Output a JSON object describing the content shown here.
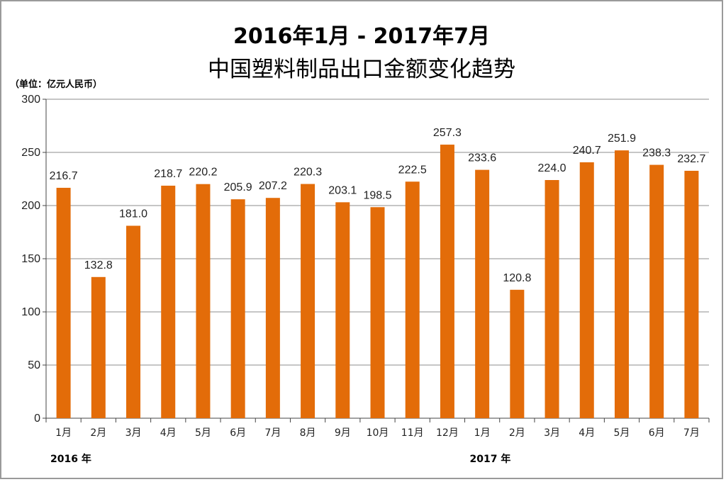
{
  "chart_data": {
    "type": "bar",
    "title": "2016年1月 - 2017年7月",
    "subtitle": "中国塑料制品出口金额变化趋势",
    "unit_label": "（单位：亿元人民币）",
    "categories": [
      "1月",
      "2月",
      "3月",
      "4月",
      "5月",
      "6月",
      "7月",
      "8月",
      "9月",
      "10月",
      "11月",
      "12月",
      "1月",
      "2月",
      "3月",
      "4月",
      "5月",
      "6月",
      "7月"
    ],
    "values": [
      216.7,
      132.8,
      181.0,
      218.7,
      220.2,
      205.9,
      207.2,
      220.3,
      203.1,
      198.5,
      222.5,
      257.3,
      233.6,
      120.8,
      224.0,
      240.7,
      251.9,
      238.3,
      232.7
    ],
    "data_labels": [
      "216.7",
      "132.8",
      "181.0",
      "218.7",
      "220.2",
      "205.9",
      "207.2",
      "220.3",
      "203.1",
      "198.5",
      "222.5",
      "257.3",
      "233.6",
      "120.8",
      "224.0",
      "240.7",
      "251.9",
      "238.3",
      "232.7"
    ],
    "year_groups": [
      {
        "label": "2016 年",
        "start_index": 0
      },
      {
        "label": "2017 年",
        "start_index": 12
      }
    ],
    "ylim": [
      0,
      300
    ],
    "yticks": [
      0,
      50,
      100,
      150,
      200,
      250,
      300
    ],
    "grid": true,
    "bar_color": "#E36C09",
    "grid_color": "#8c8c8c"
  }
}
